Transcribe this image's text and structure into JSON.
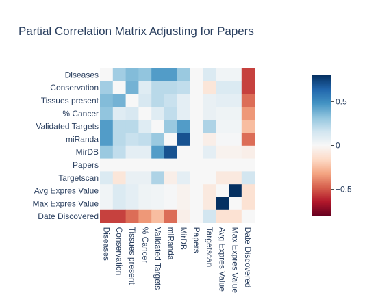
{
  "chart_data": {
    "type": "heatmap",
    "title": "Partial Correlation Matrix Adjusting for Papers",
    "xlabel": "",
    "ylabel": "",
    "categories": [
      "Diseases",
      "Conservation",
      "Tissues present",
      "% Cancer",
      "Validated Targets",
      "miRanda",
      "MirDB",
      "Papers",
      "Targetscan",
      "Avg Expres Value",
      "Max Expres Value",
      "Date Discovered"
    ],
    "colorscale": {
      "name": "RdBu",
      "min": -0.8,
      "max": 0.8,
      "ticks": [
        0.5,
        0,
        -0.5
      ],
      "tick_labels": [
        "0.5",
        "0",
        "−0.5"
      ],
      "colors": [
        "#67001f",
        "#b2182b",
        "#d6604d",
        "#f4a582",
        "#fddbc7",
        "#f7f7f7",
        "#d1e5f0",
        "#92c5de",
        "#4393c3",
        "#2166ac",
        "#053061"
      ]
    },
    "values": [
      [
        0,
        0.28,
        0.35,
        0.32,
        0.45,
        0.45,
        0.3,
        0,
        0.12,
        0.03,
        0.03,
        -0.55
      ],
      [
        0.28,
        0,
        0.38,
        0.1,
        0.22,
        0.22,
        0.2,
        0,
        -0.1,
        0.12,
        0.12,
        -0.55
      ],
      [
        0.35,
        0.38,
        0,
        0.13,
        0.22,
        0.18,
        0.08,
        0,
        0.06,
        0.08,
        0.08,
        -0.45
      ],
      [
        0.32,
        0.1,
        0.13,
        0,
        0.1,
        0.2,
        0.08,
        0,
        0.06,
        0.04,
        0.04,
        -0.35
      ],
      [
        0.45,
        0.22,
        0.22,
        0.1,
        0,
        0.3,
        0.45,
        0,
        0.25,
        0.03,
        0.03,
        -0.25
      ],
      [
        0.45,
        0.22,
        0.18,
        0.2,
        0.3,
        0,
        0.7,
        0,
        -0.05,
        0.01,
        0.01,
        -0.45
      ],
      [
        0.3,
        0.2,
        0.08,
        0.08,
        0.45,
        0.7,
        0,
        0,
        0.08,
        -0.03,
        -0.03,
        -0.05
      ],
      [
        0,
        0,
        0,
        0,
        0,
        0,
        0,
        0,
        0,
        0,
        0,
        0
      ],
      [
        0.12,
        -0.1,
        0.06,
        0.06,
        0.25,
        -0.05,
        0.08,
        0,
        0,
        -0.08,
        -0.08,
        0.15
      ],
      [
        0.03,
        0.12,
        0.08,
        0.04,
        0.03,
        0.01,
        -0.03,
        0,
        -0.08,
        0,
        0.85,
        -0.12
      ],
      [
        0.03,
        0.12,
        0.08,
        0.04,
        0.03,
        0.01,
        -0.03,
        0,
        -0.08,
        0.85,
        0,
        -0.12
      ],
      [
        -0.55,
        -0.55,
        -0.45,
        -0.35,
        -0.25,
        -0.45,
        -0.05,
        0,
        0.15,
        -0.12,
        -0.12,
        0
      ]
    ]
  }
}
